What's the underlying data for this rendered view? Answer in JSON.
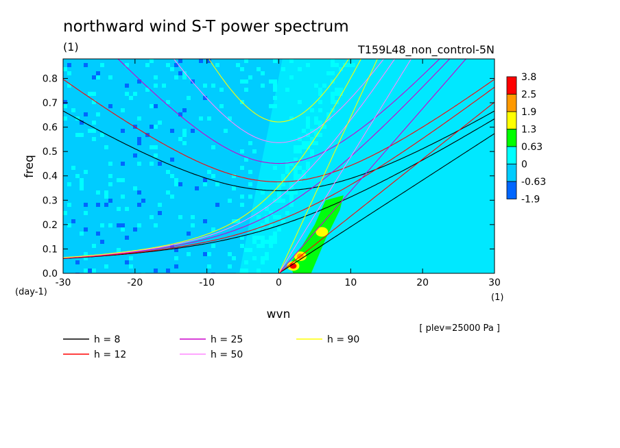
{
  "chart_data": {
    "type": "heatmap",
    "title": "northward wind S-T power spectrum",
    "subtitle_left": "(1)",
    "subtitle_right": "T159L48_non_control-5N",
    "xlabel": "wvn",
    "ylabel": "freq",
    "xunit": "(1)",
    "yunit": "(day-1)",
    "xlim": [
      -30,
      30
    ],
    "ylim": [
      0.0,
      0.88
    ],
    "xticks": [
      -30,
      -20,
      -10,
      0,
      10,
      20,
      30
    ],
    "yticks": [
      0.0,
      0.1,
      0.2,
      0.3,
      0.4,
      0.5,
      0.6,
      0.7,
      0.8
    ],
    "xtick_labels": [
      "-30",
      "-20",
      "-10",
      "0",
      "10",
      "20",
      "30"
    ],
    "ytick_labels": [
      "0.0",
      "0.1",
      "0.2",
      "0.3",
      "0.4",
      "0.5",
      "0.6",
      "0.7",
      "0.8"
    ],
    "level_note": "[ plev=25000 Pa ]",
    "colorbar": {
      "labels": [
        "3.8",
        "2.5",
        "1.9",
        "1.3",
        "0.63",
        "0",
        "-0.63",
        "-1.9"
      ],
      "colors": [
        "#ff0000",
        "#ff9900",
        "#ffff00",
        "#00ff00",
        "#00ffff",
        "#00ccff",
        "#0066ff"
      ]
    },
    "dispersion_curves": [
      {
        "name": "h =  8",
        "h": 8,
        "color": "#000000"
      },
      {
        "name": "h = 12",
        "h": 12,
        "color": "#ff0000"
      },
      {
        "name": "h = 25",
        "h": 25,
        "color": "#cc00cc"
      },
      {
        "name": "h = 50",
        "h": 50,
        "color": "#ff88ff"
      },
      {
        "name": "h = 90",
        "h": 90,
        "color": "#ffff00"
      }
    ],
    "features": [
      {
        "kind": "peak",
        "wvn": 2,
        "freq": 0.03,
        "level": "3.8"
      },
      {
        "kind": "peak",
        "wvn": 3,
        "freq": 0.07,
        "level": "2.5"
      },
      {
        "kind": "peak",
        "wvn": 6,
        "freq": 0.17,
        "level": "1.9"
      },
      {
        "kind": "band",
        "wvn_range": [
          2,
          9
        ],
        "freq_range": [
          0.0,
          0.32
        ],
        "level": "1.3"
      }
    ]
  }
}
